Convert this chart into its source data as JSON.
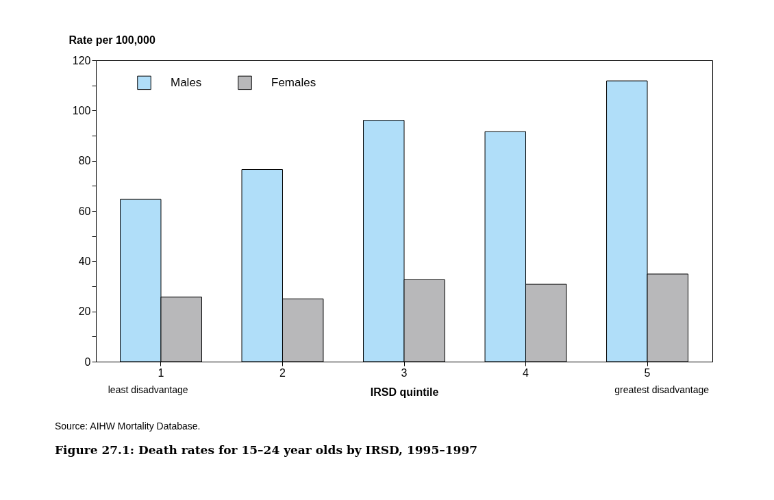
{
  "chart_data": {
    "type": "bar",
    "title": "Figure 27.1: Death rates for 15–24 year olds by IRSD, 1995–1997",
    "xlabel": "IRSD quintile",
    "ylabel": "Rate per 100,000",
    "categories": [
      "1",
      "2",
      "3",
      "4",
      "5"
    ],
    "series": [
      {
        "name": "Males",
        "color": "#b0def9",
        "values": [
          64.6,
          76.5,
          96.1,
          91.6,
          111.8
        ]
      },
      {
        "name": "Females",
        "color": "#b8b8ba",
        "values": [
          25.7,
          25.0,
          32.6,
          30.8,
          34.9
        ]
      }
    ],
    "ylim": [
      0,
      120
    ],
    "yticks": [
      0,
      {
        "value": 10,
        "label": null
      },
      20,
      {
        "value": 30,
        "label": null
      },
      40,
      {
        "value": 50,
        "label": null
      },
      60,
      {
        "value": 70,
        "label": null
      },
      80,
      {
        "value": 90,
        "label": null
      },
      100,
      {
        "value": 110,
        "label": null
      },
      120
    ],
    "annotations": [
      "least disadvantage",
      "greatest disadvantage",
      "Source: AIHW Mortality Database."
    ],
    "legend": "top left",
    "grid": false
  }
}
